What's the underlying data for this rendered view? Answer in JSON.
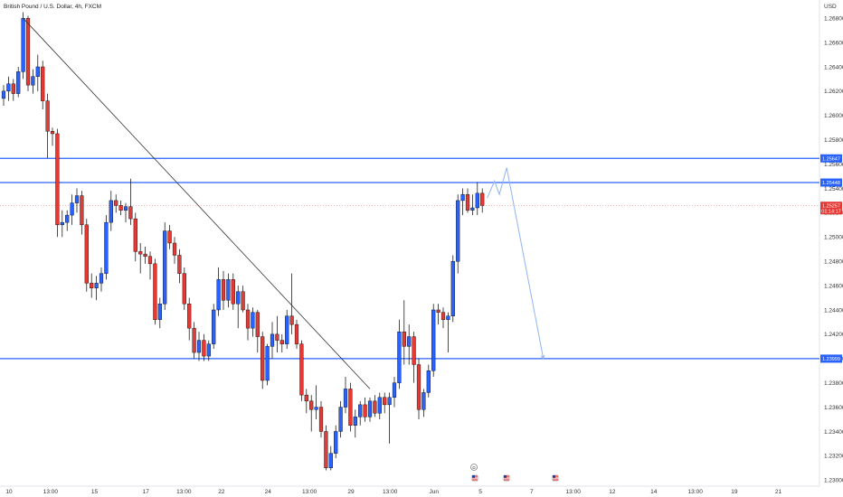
{
  "title": "British Pound / U.S. Dollar, 4h, FXCM",
  "currency": "USD",
  "colors": {
    "bull": "#2962ff",
    "bear": "#e53935",
    "level": "#2962ff",
    "projection": "#90b4f5",
    "trendline": "#333333",
    "last_price": "#e53935"
  },
  "chart_data": {
    "type": "candlestick",
    "symbol": "British Pound / U.S. Dollar",
    "timeframe": "4h",
    "source": "FXCM",
    "y_ticks": [
      "1.26800",
      "1.26600",
      "1.26400",
      "1.26200",
      "1.26000",
      "1.25800",
      "1.25600",
      "1.25400",
      "1.25200",
      "1.25000",
      "1.24800",
      "1.24600",
      "1.24400",
      "1.24200",
      "1.24000",
      "1.23800",
      "1.23600",
      "1.23400",
      "1.23200",
      "1.23000"
    ],
    "ylim": [
      1.2295,
      1.2695
    ],
    "x_ticks": [
      "10",
      "13:00",
      "15",
      "17",
      "13:00",
      "22",
      "24",
      "13:00",
      "29",
      "13:00",
      "Jun",
      "5",
      "7",
      "13:00",
      "12",
      "14",
      "13:00",
      "19",
      "21"
    ],
    "x_tick_units": [
      0,
      8.5,
      17.5,
      28,
      35.8,
      43.5,
      53,
      61.5,
      70,
      78,
      87,
      96.5,
      107,
      115.5,
      123.5,
      132,
      140.5,
      148.5,
      157.5
    ],
    "candles": [
      {
        "o": 1.2614,
        "h": 1.2625,
        "l": 1.2608,
        "c": 1.262
      },
      {
        "o": 1.262,
        "h": 1.2632,
        "l": 1.2612,
        "c": 1.2626
      },
      {
        "o": 1.2626,
        "h": 1.263,
        "l": 1.2612,
        "c": 1.2618
      },
      {
        "o": 1.2618,
        "h": 1.264,
        "l": 1.2615,
        "c": 1.2636
      },
      {
        "o": 1.2636,
        "h": 1.2685,
        "l": 1.263,
        "c": 1.268
      },
      {
        "o": 1.268,
        "h": 1.2682,
        "l": 1.262,
        "c": 1.2625
      },
      {
        "o": 1.2625,
        "h": 1.2638,
        "l": 1.2618,
        "c": 1.2632
      },
      {
        "o": 1.2632,
        "h": 1.265,
        "l": 1.262,
        "c": 1.264
      },
      {
        "o": 1.264,
        "h": 1.2645,
        "l": 1.2605,
        "c": 1.2612
      },
      {
        "o": 1.2612,
        "h": 1.2618,
        "l": 1.2565,
        "c": 1.2587
      },
      {
        "o": 1.2587,
        "h": 1.259,
        "l": 1.2575,
        "c": 1.2585
      },
      {
        "o": 1.2585,
        "h": 1.2589,
        "l": 1.25,
        "c": 1.251
      },
      {
        "o": 1.251,
        "h": 1.2522,
        "l": 1.25,
        "c": 1.2512
      },
      {
        "o": 1.2512,
        "h": 1.2522,
        "l": 1.2505,
        "c": 1.2518
      },
      {
        "o": 1.2518,
        "h": 1.2535,
        "l": 1.251,
        "c": 1.2528
      },
      {
        "o": 1.2528,
        "h": 1.254,
        "l": 1.252,
        "c": 1.2534
      },
      {
        "o": 1.2534,
        "h": 1.2538,
        "l": 1.2502,
        "c": 1.251
      },
      {
        "o": 1.251,
        "h": 1.2515,
        "l": 1.2455,
        "c": 1.2462
      },
      {
        "o": 1.2462,
        "h": 1.247,
        "l": 1.245,
        "c": 1.2458
      },
      {
        "o": 1.2458,
        "h": 1.2468,
        "l": 1.2448,
        "c": 1.2462
      },
      {
        "o": 1.2462,
        "h": 1.2475,
        "l": 1.2455,
        "c": 1.247
      },
      {
        "o": 1.247,
        "h": 1.2518,
        "l": 1.2465,
        "c": 1.2512
      },
      {
        "o": 1.2512,
        "h": 1.2538,
        "l": 1.2505,
        "c": 1.253
      },
      {
        "o": 1.253,
        "h": 1.2535,
        "l": 1.252,
        "c": 1.2526
      },
      {
        "o": 1.2526,
        "h": 1.253,
        "l": 1.2518,
        "c": 1.2522
      },
      {
        "o": 1.2522,
        "h": 1.2528,
        "l": 1.2512,
        "c": 1.2525
      },
      {
        "o": 1.2525,
        "h": 1.2548,
        "l": 1.251,
        "c": 1.2515
      },
      {
        "o": 1.2515,
        "h": 1.252,
        "l": 1.248,
        "c": 1.2488
      },
      {
        "o": 1.2488,
        "h": 1.2495,
        "l": 1.247,
        "c": 1.2486
      },
      {
        "o": 1.2486,
        "h": 1.2492,
        "l": 1.2478,
        "c": 1.2484
      },
      {
        "o": 1.2484,
        "h": 1.2488,
        "l": 1.2465,
        "c": 1.2478
      },
      {
        "o": 1.2478,
        "h": 1.2482,
        "l": 1.2428,
        "c": 1.2432
      },
      {
        "o": 1.2432,
        "h": 1.245,
        "l": 1.2425,
        "c": 1.2445
      },
      {
        "o": 1.2445,
        "h": 1.2512,
        "l": 1.244,
        "c": 1.2505
      },
      {
        "o": 1.2505,
        "h": 1.251,
        "l": 1.249,
        "c": 1.2495
      },
      {
        "o": 1.2495,
        "h": 1.25,
        "l": 1.2478,
        "c": 1.2485
      },
      {
        "o": 1.2485,
        "h": 1.249,
        "l": 1.2462,
        "c": 1.247
      },
      {
        "o": 1.247,
        "h": 1.2475,
        "l": 1.244,
        "c": 1.2445
      },
      {
        "o": 1.2445,
        "h": 1.245,
        "l": 1.2415,
        "c": 1.2425
      },
      {
        "o": 1.2425,
        "h": 1.243,
        "l": 1.24,
        "c": 1.2405
      },
      {
        "o": 1.2405,
        "h": 1.2422,
        "l": 1.2398,
        "c": 1.2415
      },
      {
        "o": 1.2415,
        "h": 1.242,
        "l": 1.2398,
        "c": 1.2402
      },
      {
        "o": 1.2402,
        "h": 1.2415,
        "l": 1.2398,
        "c": 1.2412
      },
      {
        "o": 1.2412,
        "h": 1.2445,
        "l": 1.2408,
        "c": 1.244
      },
      {
        "o": 1.244,
        "h": 1.2475,
        "l": 1.2435,
        "c": 1.2465
      },
      {
        "o": 1.2465,
        "h": 1.2472,
        "l": 1.244,
        "c": 1.2448
      },
      {
        "o": 1.2448,
        "h": 1.247,
        "l": 1.2442,
        "c": 1.2465
      },
      {
        "o": 1.2465,
        "h": 1.247,
        "l": 1.244,
        "c": 1.2445
      },
      {
        "o": 1.2445,
        "h": 1.246,
        "l": 1.2425,
        "c": 1.2455
      },
      {
        "o": 1.2455,
        "h": 1.246,
        "l": 1.2438,
        "c": 1.244
      },
      {
        "o": 1.244,
        "h": 1.2445,
        "l": 1.2415,
        "c": 1.2425
      },
      {
        "o": 1.2425,
        "h": 1.2442,
        "l": 1.2418,
        "c": 1.2438
      },
      {
        "o": 1.2438,
        "h": 1.244,
        "l": 1.2405,
        "c": 1.2418
      },
      {
        "o": 1.2418,
        "h": 1.2422,
        "l": 1.2375,
        "c": 1.2382
      },
      {
        "o": 1.2382,
        "h": 1.2412,
        "l": 1.2378,
        "c": 1.241
      },
      {
        "o": 1.241,
        "h": 1.243,
        "l": 1.24,
        "c": 1.242
      },
      {
        "o": 1.242,
        "h": 1.2435,
        "l": 1.2405,
        "c": 1.2415
      },
      {
        "o": 1.2415,
        "h": 1.242,
        "l": 1.2405,
        "c": 1.2412
      },
      {
        "o": 1.2412,
        "h": 1.244,
        "l": 1.2408,
        "c": 1.2435
      },
      {
        "o": 1.2435,
        "h": 1.247,
        "l": 1.242,
        "c": 1.2428
      },
      {
        "o": 1.2428,
        "h": 1.2432,
        "l": 1.2408,
        "c": 1.2412
      },
      {
        "o": 1.2412,
        "h": 1.2415,
        "l": 1.2365,
        "c": 1.237
      },
      {
        "o": 1.237,
        "h": 1.2375,
        "l": 1.2355,
        "c": 1.2365
      },
      {
        "o": 1.2365,
        "h": 1.237,
        "l": 1.234,
        "c": 1.2358
      },
      {
        "o": 1.2358,
        "h": 1.2378,
        "l": 1.235,
        "c": 1.236
      },
      {
        "o": 1.236,
        "h": 1.2365,
        "l": 1.2335,
        "c": 1.234
      },
      {
        "o": 1.234,
        "h": 1.2345,
        "l": 1.2308,
        "c": 1.231
      },
      {
        "o": 1.231,
        "h": 1.2328,
        "l": 1.2308,
        "c": 1.2322
      },
      {
        "o": 1.2322,
        "h": 1.2345,
        "l": 1.2318,
        "c": 1.234
      },
      {
        "o": 1.234,
        "h": 1.2365,
        "l": 1.2335,
        "c": 1.236
      },
      {
        "o": 1.236,
        "h": 1.2385,
        "l": 1.2355,
        "c": 1.2375
      },
      {
        "o": 1.2375,
        "h": 1.238,
        "l": 1.234,
        "c": 1.2345
      },
      {
        "o": 1.2345,
        "h": 1.2358,
        "l": 1.2335,
        "c": 1.2352
      },
      {
        "o": 1.2352,
        "h": 1.2365,
        "l": 1.2345,
        "c": 1.2362
      },
      {
        "o": 1.2362,
        "h": 1.2368,
        "l": 1.2348,
        "c": 1.2352
      },
      {
        "o": 1.2352,
        "h": 1.2368,
        "l": 1.2348,
        "c": 1.2365
      },
      {
        "o": 1.2365,
        "h": 1.237,
        "l": 1.2352,
        "c": 1.2355
      },
      {
        "o": 1.2355,
        "h": 1.2372,
        "l": 1.235,
        "c": 1.2368
      },
      {
        "o": 1.2368,
        "h": 1.2372,
        "l": 1.2355,
        "c": 1.2362
      },
      {
        "o": 1.2362,
        "h": 1.2372,
        "l": 1.233,
        "c": 1.2368
      },
      {
        "o": 1.2368,
        "h": 1.2385,
        "l": 1.236,
        "c": 1.238
      },
      {
        "o": 1.238,
        "h": 1.2432,
        "l": 1.2375,
        "c": 1.2422
      },
      {
        "o": 1.2422,
        "h": 1.2448,
        "l": 1.2395,
        "c": 1.241
      },
      {
        "o": 1.241,
        "h": 1.2428,
        "l": 1.2395,
        "c": 1.2418
      },
      {
        "o": 1.2418,
        "h": 1.2422,
        "l": 1.238,
        "c": 1.2395
      },
      {
        "o": 1.2395,
        "h": 1.24,
        "l": 1.235,
        "c": 1.2358
      },
      {
        "o": 1.2358,
        "h": 1.2375,
        "l": 1.2352,
        "c": 1.2372
      },
      {
        "o": 1.2372,
        "h": 1.2395,
        "l": 1.2368,
        "c": 1.239
      },
      {
        "o": 1.239,
        "h": 1.2445,
        "l": 1.2385,
        "c": 1.244
      },
      {
        "o": 1.244,
        "h": 1.2445,
        "l": 1.2428,
        "c": 1.2438
      },
      {
        "o": 1.2438,
        "h": 1.2442,
        "l": 1.2425,
        "c": 1.2432
      },
      {
        "o": 1.2432,
        "h": 1.2438,
        "l": 1.2405,
        "c": 1.2435
      },
      {
        "o": 1.2435,
        "h": 1.2485,
        "l": 1.243,
        "c": 1.248
      },
      {
        "o": 1.248,
        "h": 1.2535,
        "l": 1.247,
        "c": 1.253
      },
      {
        "o": 1.253,
        "h": 1.254,
        "l": 1.2518,
        "c": 1.2535
      },
      {
        "o": 1.2535,
        "h": 1.254,
        "l": 1.252,
        "c": 1.2522
      },
      {
        "o": 1.2522,
        "h": 1.2535,
        "l": 1.2518,
        "c": 1.2524
      },
      {
        "o": 1.2524,
        "h": 1.2545,
        "l": 1.2518,
        "c": 1.2536
      },
      {
        "o": 1.2536,
        "h": 1.254,
        "l": 1.252,
        "c": 1.2526
      }
    ],
    "levels": [
      {
        "price": 1.25647,
        "label": "1.25647"
      },
      {
        "price": 1.25448,
        "label": "1.25448"
      },
      {
        "price": 1.23999,
        "label": "1.23999"
      }
    ],
    "trendline": [
      {
        "i": 4,
        "price": 1.268
      },
      {
        "i": 75,
        "price": 1.2375
      }
    ],
    "projection": [
      {
        "i": 99,
        "price": 1.2532
      },
      {
        "i": 100.5,
        "price": 1.2546
      },
      {
        "i": 101.5,
        "price": 1.2535
      },
      {
        "i": 103,
        "price": 1.2557
      },
      {
        "i": 110.5,
        "price": 1.24
      }
    ],
    "last_price": {
      "price": 1.25257,
      "label": "1.25257",
      "countdown": "01:14:17"
    }
  },
  "events": [
    {
      "icon": "dividend-icon",
      "glyph": "D"
    },
    {
      "icon": "us-flag-icon"
    },
    {
      "icon": "us-flag-icon"
    },
    {
      "icon": "us-flag-icon"
    }
  ]
}
